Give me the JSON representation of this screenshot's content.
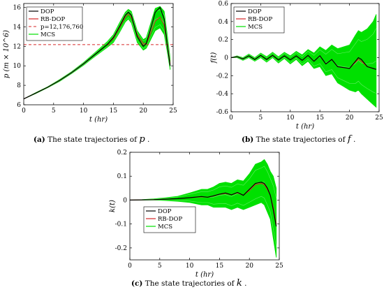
{
  "chart_data": [
    {
      "type": "line",
      "panel": "(a)",
      "caption_label": "(a)",
      "caption_text": "The state trajectories of",
      "caption_symbol": "p",
      "caption_end": ".",
      "ylabel": "p (m × 10^6)",
      "xlabel": "t (hr)",
      "xlim": [
        0,
        25
      ],
      "ylim": [
        6,
        16.4
      ],
      "xticks": [
        0,
        5,
        10,
        15,
        20,
        25
      ],
      "yticks": [
        6,
        8,
        10,
        12,
        14,
        16
      ],
      "grid": false,
      "legend_position": "top-left",
      "legend": [
        "DOP",
        "RB-DOP",
        "p=12,176,760",
        "MCS"
      ],
      "hline": 12.17676,
      "series": [
        {
          "name": "DOP",
          "color": "#000000",
          "x": [
            0,
            2,
            4,
            6,
            8,
            10,
            12,
            14,
            15,
            16,
            17,
            17.5,
            18,
            19,
            20,
            20.5,
            21,
            22,
            22.8,
            23.5,
            24,
            24.5
          ],
          "y": [
            6.6,
            7.2,
            7.8,
            8.5,
            9.3,
            10.2,
            11.2,
            12.2,
            12.9,
            14.0,
            15.2,
            15.5,
            15.2,
            13.0,
            12.0,
            12.3,
            13.3,
            15.5,
            16.0,
            14.8,
            12.2,
            10.0
          ]
        },
        {
          "name": "RB-DOP",
          "color": "#d62728",
          "x": [
            0,
            2,
            4,
            6,
            8,
            10,
            12,
            14,
            15,
            16,
            17,
            17.5,
            18,
            19,
            20,
            20.5,
            21,
            22,
            22.8,
            23.5,
            24,
            24.5
          ],
          "y": [
            6.6,
            7.2,
            7.8,
            8.5,
            9.3,
            10.2,
            11.2,
            12.2,
            12.8,
            13.9,
            15.0,
            15.3,
            15.0,
            13.2,
            12.3,
            12.3,
            13.0,
            14.6,
            15.0,
            14.2,
            12.3,
            10.2
          ]
        },
        {
          "name": "MCS",
          "color": "#00e000",
          "band": true,
          "x": [
            0,
            2,
            4,
            6,
            8,
            10,
            12,
            14,
            15,
            16,
            17,
            17.5,
            18,
            19,
            20,
            20.5,
            21,
            22,
            22.8,
            23.5,
            24,
            24.5
          ],
          "lower": [
            6.6,
            7.15,
            7.75,
            8.4,
            9.2,
            10.05,
            11.0,
            11.9,
            12.4,
            13.4,
            14.5,
            14.8,
            14.4,
            12.4,
            11.6,
            11.8,
            12.4,
            13.6,
            13.9,
            13.2,
            11.5,
            9.6
          ],
          "upper": [
            6.6,
            7.25,
            7.85,
            8.6,
            9.4,
            10.35,
            11.4,
            12.5,
            13.2,
            14.4,
            15.5,
            15.8,
            15.6,
            13.6,
            12.7,
            12.9,
            13.9,
            15.9,
            16.1,
            15.6,
            13.3,
            10.8
          ]
        }
      ]
    },
    {
      "type": "line",
      "panel": "(b)",
      "caption_label": "(b)",
      "caption_text": "The state trajectories of",
      "caption_symbol": "f",
      "caption_end": ".",
      "ylabel": "f(t)",
      "xlabel": "t (hr)",
      "xlim": [
        0,
        25
      ],
      "ylim": [
        -0.6,
        0.6
      ],
      "xticks": [
        0,
        5,
        10,
        15,
        20,
        25
      ],
      "yticks": [
        -0.6,
        -0.4,
        -0.2,
        0,
        0.2,
        0.4,
        0.6
      ],
      "grid": false,
      "legend_position": "top-left",
      "legend": [
        "DOP",
        "RB-DOP",
        "MCS"
      ],
      "series": [
        {
          "name": "DOP",
          "color": "#000000",
          "x": [
            0,
            1,
            2,
            3,
            4,
            5,
            6,
            7,
            8,
            9,
            10,
            11,
            12,
            13,
            14,
            15,
            16,
            17,
            18,
            19,
            20,
            21,
            21.5,
            22,
            23,
            24,
            24.5
          ],
          "y": [
            0,
            0.01,
            -0.015,
            0.02,
            -0.02,
            0.025,
            -0.02,
            0.025,
            -0.025,
            0.02,
            -0.025,
            0.02,
            -0.03,
            0.025,
            -0.04,
            0.02,
            -0.07,
            -0.02,
            -0.1,
            -0.11,
            -0.12,
            -0.04,
            0.0,
            -0.02,
            -0.1,
            -0.12,
            -0.13
          ]
        },
        {
          "name": "RB-DOP",
          "color": "#d62728",
          "x": [
            0,
            1,
            2,
            3,
            4,
            5,
            6,
            7,
            8,
            9,
            10,
            11,
            12,
            13,
            14,
            15,
            16,
            17,
            18,
            19,
            20,
            21,
            21.5,
            22,
            23,
            24,
            24.5
          ],
          "y": [
            0,
            0.01,
            -0.015,
            0.02,
            -0.02,
            0.025,
            -0.02,
            0.025,
            -0.025,
            0.02,
            -0.025,
            0.02,
            -0.03,
            0.025,
            -0.04,
            0.02,
            -0.07,
            -0.02,
            -0.1,
            -0.11,
            -0.12,
            -0.05,
            -0.02,
            -0.04,
            -0.1,
            -0.12,
            -0.13
          ]
        },
        {
          "name": "MCS",
          "color": "#00e000",
          "band": true,
          "x": [
            0,
            1,
            2,
            3,
            4,
            5,
            6,
            7,
            8,
            9,
            10,
            11,
            12,
            13,
            14,
            15,
            16,
            17,
            18,
            19,
            20,
            21,
            21.5,
            22,
            23,
            24,
            24.5
          ],
          "lower": [
            0,
            0.0,
            -0.03,
            0.0,
            -0.04,
            0.0,
            -0.05,
            0.0,
            -0.06,
            -0.01,
            -0.07,
            -0.02,
            -0.09,
            -0.04,
            -0.12,
            -0.1,
            -0.2,
            -0.18,
            -0.28,
            -0.32,
            -0.36,
            -0.38,
            -0.36,
            -0.4,
            -0.46,
            -0.52,
            -0.55
          ],
          "upper": [
            0,
            0.02,
            0.0,
            0.04,
            0.0,
            0.05,
            0.01,
            0.06,
            0.01,
            0.06,
            0.02,
            0.07,
            0.03,
            0.09,
            0.05,
            0.12,
            0.08,
            0.14,
            0.1,
            0.12,
            0.14,
            0.25,
            0.3,
            0.28,
            0.32,
            0.4,
            0.48
          ]
        }
      ]
    },
    {
      "type": "line",
      "panel": "(c)",
      "caption_label": "(c)",
      "caption_text": "The state trajectories of",
      "caption_symbol": "k",
      "caption_end": ".",
      "ylabel": "k(t)",
      "xlabel": "t (hr)",
      "xlim": [
        0,
        25
      ],
      "ylim": [
        -0.25,
        0.2
      ],
      "xticks": [
        0,
        5,
        10,
        15,
        20,
        25
      ],
      "yticks": [
        -0.2,
        -0.1,
        0,
        0.1,
        0.2
      ],
      "grid": false,
      "legend_position": "bottom-left",
      "legend": [
        "DOP",
        "RB-DOP",
        "MCS"
      ],
      "series": [
        {
          "name": "DOP",
          "color": "#000000",
          "x": [
            0,
            2,
            4,
            6,
            8,
            10,
            12,
            13,
            14,
            15,
            16,
            17,
            18,
            19,
            20,
            21,
            22,
            22.5,
            23,
            23.5,
            24,
            24.5
          ],
          "y": [
            0,
            0.001,
            0.002,
            0.004,
            0.006,
            0.01,
            0.015,
            0.012,
            0.018,
            0.025,
            0.03,
            0.022,
            0.032,
            0.02,
            0.045,
            0.07,
            0.075,
            0.07,
            0.05,
            0.02,
            -0.04,
            -0.11
          ]
        },
        {
          "name": "RB-DOP",
          "color": "#d62728",
          "x": [
            0,
            2,
            4,
            6,
            8,
            10,
            12,
            13,
            14,
            15,
            16,
            17,
            18,
            19,
            20,
            21,
            22,
            22.5,
            23,
            23.5,
            24,
            24.5
          ],
          "y": [
            0,
            0.001,
            0.002,
            0.004,
            0.006,
            0.01,
            0.014,
            0.012,
            0.017,
            0.024,
            0.028,
            0.022,
            0.03,
            0.02,
            0.04,
            0.065,
            0.07,
            0.065,
            0.045,
            0.02,
            -0.03,
            -0.1
          ]
        },
        {
          "name": "MCS",
          "color": "#00e000",
          "band": true,
          "x": [
            0,
            2,
            4,
            6,
            8,
            10,
            12,
            13,
            14,
            15,
            16,
            17,
            18,
            19,
            20,
            21,
            22,
            22.5,
            23,
            23.5,
            24,
            24.5
          ],
          "lower": [
            0,
            0.0,
            0.0,
            -0.002,
            -0.005,
            -0.01,
            -0.02,
            -0.02,
            -0.03,
            -0.03,
            -0.03,
            -0.04,
            -0.03,
            -0.04,
            -0.03,
            -0.02,
            -0.01,
            -0.02,
            -0.05,
            -0.08,
            -0.16,
            -0.24
          ],
          "upper": [
            0,
            0.002,
            0.005,
            0.01,
            0.016,
            0.03,
            0.045,
            0.045,
            0.055,
            0.07,
            0.075,
            0.07,
            0.085,
            0.08,
            0.11,
            0.15,
            0.16,
            0.17,
            0.15,
            0.12,
            0.1,
            0.05
          ]
        }
      ]
    }
  ]
}
